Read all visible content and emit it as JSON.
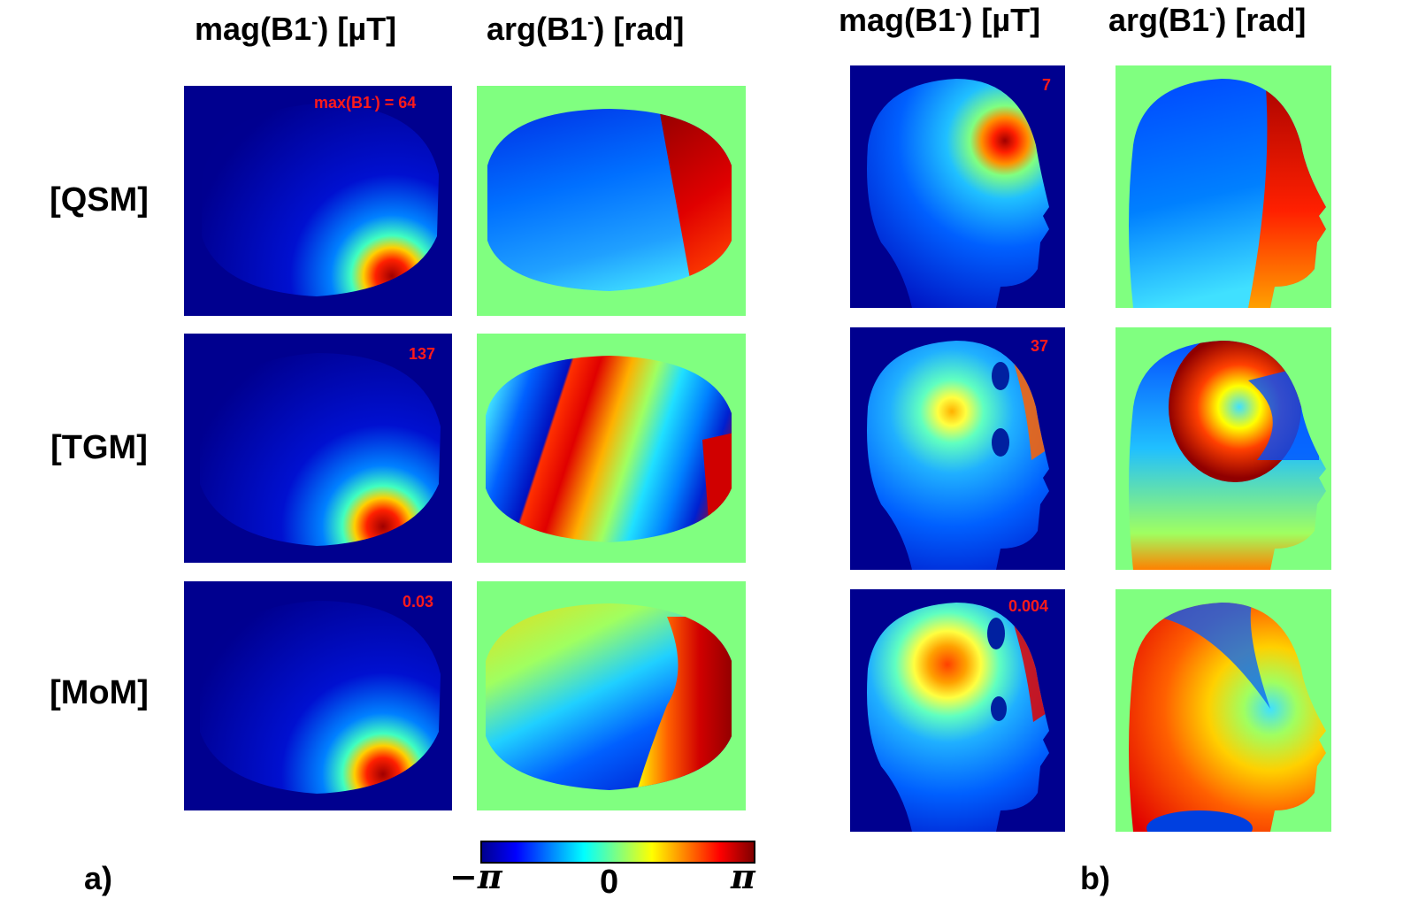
{
  "panel_a": {
    "columns": [
      {
        "main": "mag(B1",
        "sup": "-",
        "tail": ") [µT]"
      },
      {
        "main": "arg(B1",
        "sup": "-",
        "tail": ") [rad]"
      }
    ],
    "rows": [
      {
        "label": "[QSM]",
        "max_value": "max(B1",
        "max_sup": "-",
        "max_tail": ") = 64"
      },
      {
        "label": "[TGM]",
        "max_value": "137"
      },
      {
        "label": "[MoM]",
        "max_value": "0.03"
      }
    ],
    "sublabel": "a)"
  },
  "panel_b": {
    "columns": [
      {
        "main": "mag(B1",
        "sup": "-",
        "tail": ") [µT]"
      },
      {
        "main": "arg(B1",
        "sup": "-",
        "tail": ") [rad]"
      }
    ],
    "rows": [
      {
        "max_value": "7"
      },
      {
        "max_value": "37"
      },
      {
        "max_value": "0.004"
      }
    ],
    "sublabel": "b)"
  },
  "colorbar": {
    "ticks": [
      "−π",
      "0",
      "π"
    ],
    "colormap": "jet"
  },
  "colors": {
    "background_mag": "#00008f",
    "background_phase": "#80ff80",
    "max_label": "#ff1a1a"
  }
}
